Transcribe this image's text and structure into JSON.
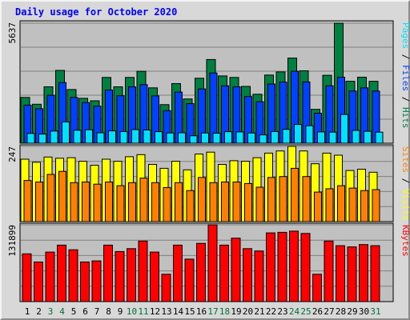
{
  "chart_data": {
    "type": "bar",
    "title": "Daily usage for October 2020",
    "categories": [
      "1",
      "2",
      "3",
      "4",
      "5",
      "6",
      "7",
      "8",
      "9",
      "10",
      "11",
      "12",
      "13",
      "14",
      "15",
      "16",
      "17",
      "18",
      "19",
      "20",
      "21",
      "22",
      "23",
      "24",
      "25",
      "26",
      "27",
      "28",
      "29",
      "30",
      "31"
    ],
    "weekend_days": [
      "3",
      "4",
      "10",
      "11",
      "17",
      "18",
      "24",
      "25",
      "31"
    ],
    "colors": {
      "title": "#0000ff",
      "weekday_label": "#000000",
      "weekend_label": "#006f3c",
      "hits": "#008040",
      "files": "#0040ff",
      "pages": "#00e0ff",
      "visits": "#ffff00",
      "sites": "#ff8000",
      "kbytes": "#ff0000",
      "panel_bg": "#c0c0c0"
    },
    "panels": [
      {
        "id": "hits-files-pages",
        "ylim": [
          0,
          5637
        ],
        "ytick": "5637",
        "legend": [
          {
            "text": "Pages",
            "color": "#00e0ff"
          },
          {
            "text": " / ",
            "color": "#000000"
          },
          {
            "text": "Files",
            "color": "#0040ff"
          },
          {
            "text": " / ",
            "color": "#000000"
          },
          {
            "text": "Hits",
            "color": "#008040"
          }
        ],
        "series": [
          {
            "name": "Hits",
            "color": "#008040",
            "values": [
              2150,
              1830,
              2650,
              3420,
              2520,
              2110,
              1990,
              3090,
              2650,
              3090,
              3380,
              2600,
              1810,
              2800,
              2080,
              3050,
              3930,
              3160,
              3090,
              2670,
              2300,
              3200,
              3350,
              4000,
              3400,
              1590,
              3190,
              5637,
              2910,
              3100,
              2910
            ]
          },
          {
            "name": "Files",
            "color": "#0040ff",
            "values": [
              1790,
              1620,
              2250,
              2850,
              2150,
              1910,
              1740,
              2500,
              2230,
              2650,
              2750,
              2220,
              1530,
              2400,
              1860,
              2550,
              3300,
              2700,
              2650,
              2190,
              1950,
              2780,
              2870,
              3380,
              2880,
              1410,
              2700,
              3100,
              2450,
              2600,
              2450
            ]
          },
          {
            "name": "Pages",
            "color": "#00e0ff",
            "values": [
              460,
              430,
              570,
              1000,
              610,
              630,
              490,
              580,
              550,
              640,
              620,
              540,
              480,
              490,
              350,
              480,
              470,
              540,
              530,
              480,
              390,
              550,
              650,
              880,
              820,
              530,
              520,
              1350,
              600,
              560,
              520
            ]
          }
        ]
      },
      {
        "id": "visits-sites",
        "ylim": [
          0,
          247
        ],
        "ytick": "247",
        "legend": [
          {
            "text": "Sites",
            "color": "#ff8000"
          },
          {
            "text": " / ",
            "color": "#000000"
          },
          {
            "text": "Visits",
            "color": "#ffff00"
          }
        ],
        "series": [
          {
            "name": "Visits",
            "color": "#ffff00",
            "values": [
              205,
              195,
              212,
              208,
              210,
              198,
              185,
              205,
              198,
              213,
              220,
              188,
              175,
              198,
              170,
              222,
              228,
              188,
              200,
              198,
              210,
              225,
              232,
              247,
              232,
              190,
              225,
              218,
              168,
              172,
              162
            ]
          },
          {
            "name": "Sites",
            "color": "#ff8000",
            "values": [
              135,
              130,
              155,
              165,
              128,
              130,
              123,
              130,
              118,
              128,
              143,
              128,
              112,
              128,
              102,
              145,
              128,
              130,
              130,
              125,
              113,
              145,
              148,
              175,
              148,
              97,
              108,
              118,
              110,
              102,
              105
            ]
          }
        ]
      },
      {
        "id": "kbytes",
        "ylim": [
          0,
          131899
        ],
        "ytick": "131899",
        "legend": [
          {
            "text": "KBytes",
            "color": "#ff0000"
          }
        ],
        "series": [
          {
            "name": "KBytes",
            "color": "#ff0000",
            "values": [
              82000,
              68000,
              85000,
              97000,
              89000,
              68000,
              70000,
              97000,
              86000,
              91000,
              104000,
              85000,
              47000,
              97000,
              73000,
              100000,
              131899,
              97000,
              109000,
              91000,
              87000,
              118000,
              119000,
              121000,
              117000,
              47000,
              104000,
              96000,
              94000,
              98000,
              96000
            ]
          }
        ]
      }
    ]
  }
}
